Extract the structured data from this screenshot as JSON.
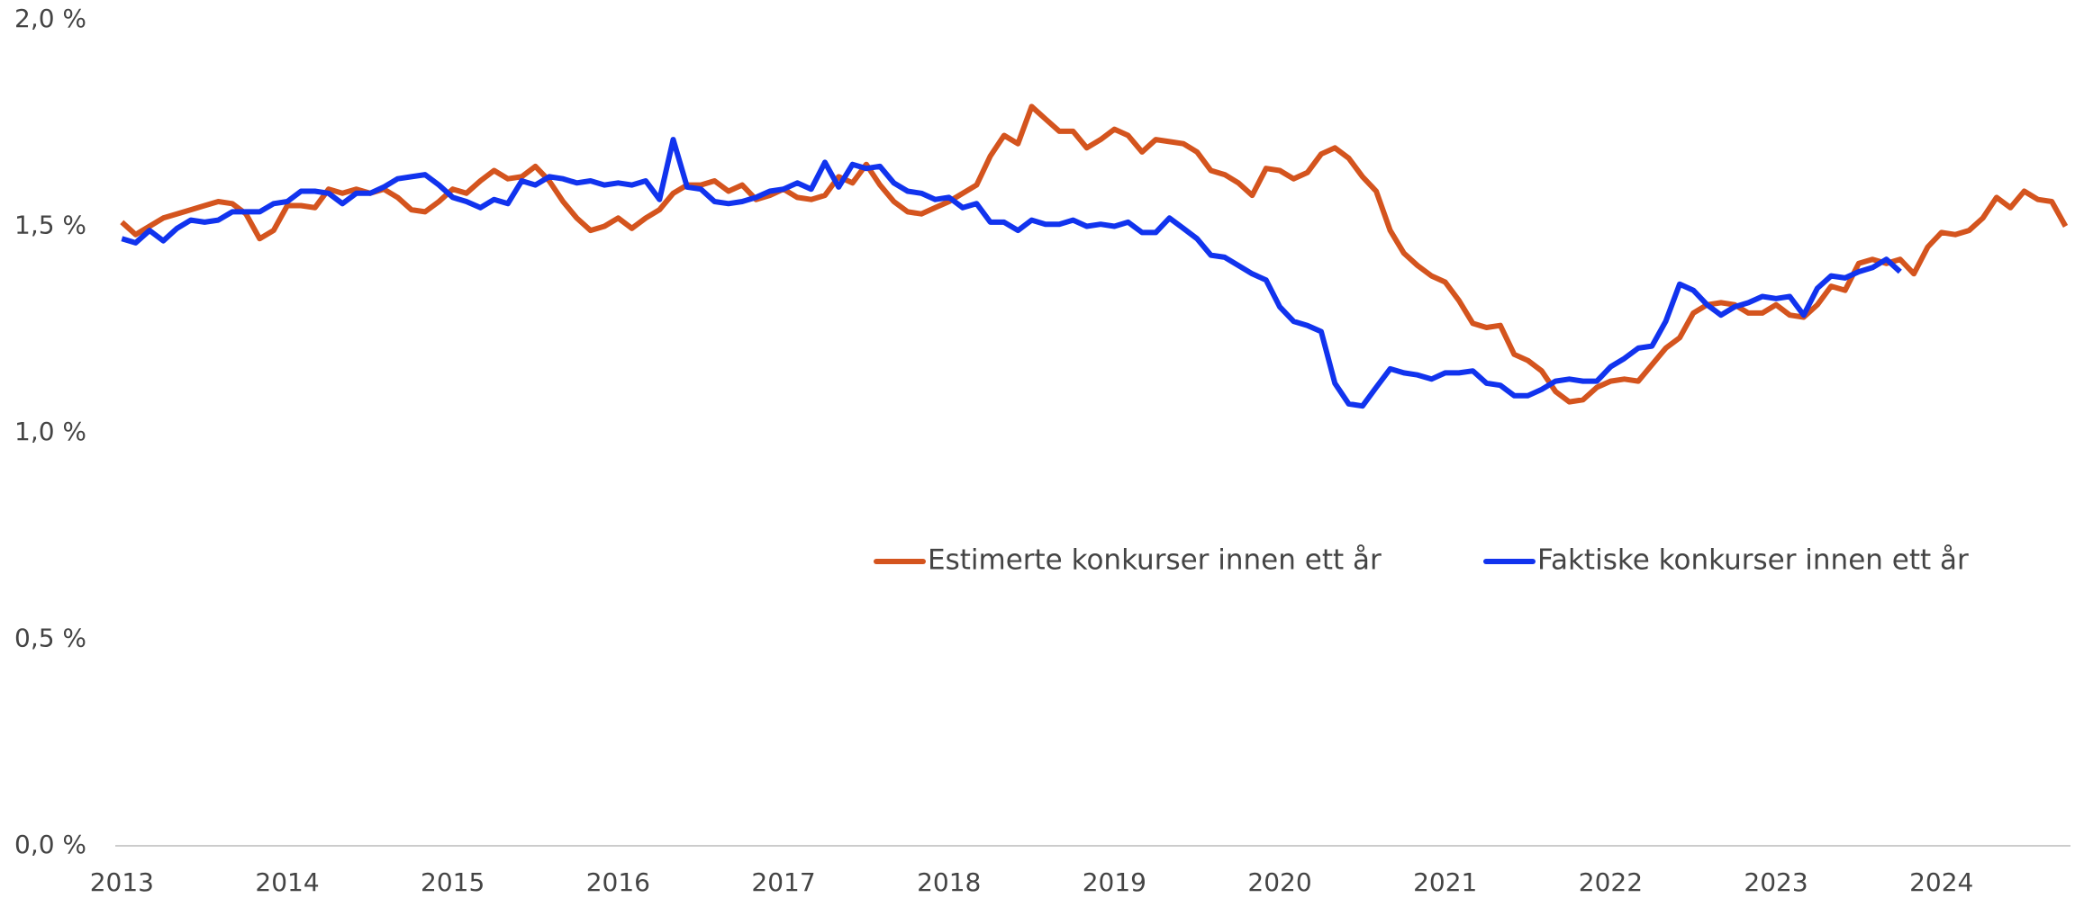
{
  "chart_data": {
    "type": "line",
    "x": [
      2013.0,
      2013.083,
      2013.167,
      2013.25,
      2013.333,
      2013.417,
      2013.5,
      2013.583,
      2013.667,
      2013.75,
      2013.833,
      2013.917,
      2014.0,
      2014.083,
      2014.167,
      2014.25,
      2014.333,
      2014.417,
      2014.5,
      2014.583,
      2014.667,
      2014.75,
      2014.833,
      2014.917,
      2015.0,
      2015.083,
      2015.167,
      2015.25,
      2015.333,
      2015.417,
      2015.5,
      2015.583,
      2015.667,
      2015.75,
      2015.833,
      2015.917,
      2016.0,
      2016.083,
      2016.167,
      2016.25,
      2016.333,
      2016.417,
      2016.5,
      2016.583,
      2016.667,
      2016.75,
      2016.833,
      2016.917,
      2017.0,
      2017.083,
      2017.167,
      2017.25,
      2017.333,
      2017.417,
      2017.5,
      2017.583,
      2017.667,
      2017.75,
      2017.833,
      2017.917,
      2018.0,
      2018.083,
      2018.167,
      2018.25,
      2018.333,
      2018.417,
      2018.5,
      2018.583,
      2018.667,
      2018.75,
      2018.833,
      2018.917,
      2019.0,
      2019.083,
      2019.167,
      2019.25,
      2019.333,
      2019.417,
      2019.5,
      2019.583,
      2019.667,
      2019.75,
      2019.833,
      2019.917,
      2020.0,
      2020.083,
      2020.167,
      2020.25,
      2020.333,
      2020.417,
      2020.5,
      2020.583,
      2020.667,
      2020.75,
      2020.833,
      2020.917,
      2021.0,
      2021.083,
      2021.167,
      2021.25,
      2021.333,
      2021.417,
      2021.5,
      2021.583,
      2021.667,
      2021.75,
      2021.833,
      2021.917,
      2022.0,
      2022.083,
      2022.167,
      2022.25,
      2022.333,
      2022.417,
      2022.5,
      2022.583,
      2022.667,
      2022.75,
      2022.833,
      2022.917,
      2023.0,
      2023.083,
      2023.167,
      2023.25,
      2023.333,
      2023.417,
      2023.5,
      2023.583,
      2023.667,
      2023.75,
      2023.833,
      2023.917,
      2024.0,
      2024.083,
      2024.167,
      2024.25,
      2024.333,
      2024.417,
      2024.5,
      2024.583,
      2024.667,
      2024.75
    ],
    "series": [
      {
        "name": "Estimerte konkurser innen ett år",
        "color": "#d4541e",
        "values": [
          1.51,
          1.48,
          1.5,
          1.52,
          1.53,
          1.54,
          1.55,
          1.56,
          1.555,
          1.53,
          1.47,
          1.49,
          1.55,
          1.55,
          1.545,
          1.59,
          1.58,
          1.59,
          1.58,
          1.59,
          1.57,
          1.54,
          1.535,
          1.56,
          1.59,
          1.58,
          1.61,
          1.635,
          1.615,
          1.62,
          1.645,
          1.61,
          1.56,
          1.52,
          1.49,
          1.5,
          1.52,
          1.495,
          1.52,
          1.54,
          1.58,
          1.6,
          1.6,
          1.61,
          1.585,
          1.6,
          1.565,
          1.575,
          1.59,
          1.57,
          1.565,
          1.575,
          1.62,
          1.605,
          1.65,
          1.6,
          1.56,
          1.535,
          1.53,
          1.545,
          1.56,
          1.58,
          1.6,
          1.67,
          1.72,
          1.7,
          1.79,
          1.76,
          1.73,
          1.73,
          1.69,
          1.71,
          1.735,
          1.72,
          1.68,
          1.71,
          1.705,
          1.7,
          1.68,
          1.635,
          1.625,
          1.605,
          1.575,
          1.64,
          1.635,
          1.615,
          1.63,
          1.675,
          1.69,
          1.665,
          1.62,
          1.585,
          1.49,
          1.435,
          1.405,
          1.38,
          1.365,
          1.32,
          1.265,
          1.255,
          1.26,
          1.19,
          1.175,
          1.15,
          1.1,
          1.075,
          1.08,
          1.11,
          1.125,
          1.13,
          1.125,
          1.165,
          1.205,
          1.23,
          1.29,
          1.31,
          1.315,
          1.31,
          1.29,
          1.29,
          1.31,
          1.285,
          1.28,
          1.31,
          1.355,
          1.345,
          1.41,
          1.42,
          1.41,
          1.42,
          1.385,
          1.45,
          1.485,
          1.48,
          1.49,
          1.52,
          1.57,
          1.545,
          1.585,
          1.565,
          1.56,
          1.5
        ]
      },
      {
        "name": "Faktiske konkurser innen ett år",
        "color": "#1133ee",
        "values": [
          1.47,
          1.46,
          1.49,
          1.465,
          1.495,
          1.515,
          1.51,
          1.515,
          1.535,
          1.535,
          1.535,
          1.555,
          1.56,
          1.585,
          1.585,
          1.58,
          1.555,
          1.58,
          1.58,
          1.595,
          1.615,
          1.62,
          1.625,
          1.6,
          1.57,
          1.56,
          1.545,
          1.565,
          1.555,
          1.61,
          1.6,
          1.62,
          1.615,
          1.605,
          1.61,
          1.6,
          1.605,
          1.6,
          1.61,
          1.565,
          1.71,
          1.595,
          1.59,
          1.56,
          1.555,
          1.56,
          1.57,
          1.585,
          1.59,
          1.605,
          1.59,
          1.655,
          1.595,
          1.65,
          1.64,
          1.645,
          1.605,
          1.585,
          1.58,
          1.565,
          1.57,
          1.545,
          1.555,
          1.51,
          1.51,
          1.49,
          1.515,
          1.505,
          1.505,
          1.515,
          1.5,
          1.505,
          1.5,
          1.51,
          1.485,
          1.485,
          1.52,
          1.495,
          1.47,
          1.43,
          1.425,
          1.405,
          1.385,
          1.37,
          1.305,
          1.27,
          1.26,
          1.245,
          1.12,
          1.07,
          1.065,
          1.11,
          1.155,
          1.145,
          1.14,
          1.13,
          1.145,
          1.145,
          1.15,
          1.12,
          1.115,
          1.09,
          1.09,
          1.105,
          1.125,
          1.13,
          1.125,
          1.125,
          1.16,
          1.18,
          1.205,
          1.21,
          1.27,
          1.36,
          1.345,
          1.31,
          1.285,
          1.305,
          1.315,
          1.33,
          1.325,
          1.33,
          1.285,
          1.35,
          1.38,
          1.375,
          1.39,
          1.4,
          1.42,
          1.39,
          null,
          null,
          null,
          null,
          null,
          null,
          null,
          null,
          null,
          null,
          null,
          null
        ]
      }
    ],
    "xlim": [
      2012.96,
      2024.78
    ],
    "xticks": [
      2013,
      2014,
      2015,
      2016,
      2017,
      2018,
      2019,
      2020,
      2021,
      2022,
      2023,
      2024
    ],
    "ylim": [
      0,
      2
    ],
    "yticks": [
      {
        "value": 0,
        "label": "0,0 %"
      },
      {
        "value": 0.5,
        "label": "0,5 %"
      },
      {
        "value": 1,
        "label": "1,0 %"
      },
      {
        "value": 1.5,
        "label": "1,5 %"
      },
      {
        "value": 2,
        "label": "2,0 %"
      }
    ]
  }
}
